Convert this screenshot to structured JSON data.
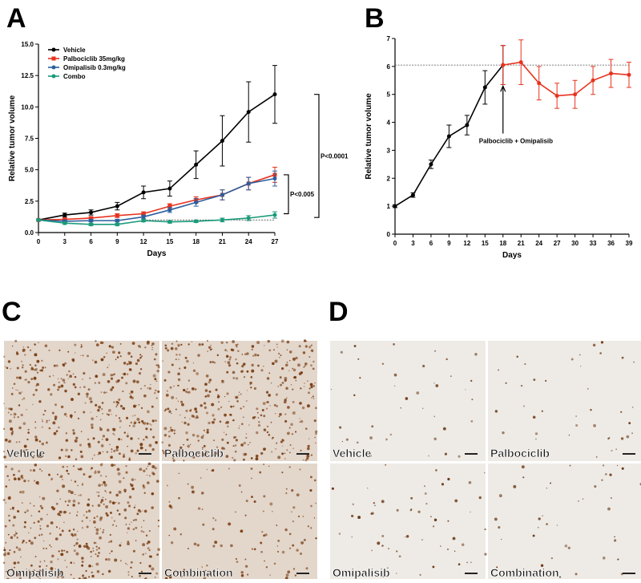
{
  "chart_data": [
    {
      "type": "line",
      "panel": "A",
      "xlabel": "Days",
      "ylabel": "Relative tumor volume",
      "xlim": [
        0,
        27
      ],
      "xticks": [
        0,
        3,
        6,
        9,
        12,
        15,
        18,
        21,
        24,
        27
      ],
      "ylim": [
        0,
        15
      ],
      "yticks": [
        {
          "value": 0,
          "label": "0.0"
        },
        2.5,
        {
          "value": 5,
          "label": "5.0"
        },
        7.5,
        {
          "value": 10,
          "label": "10.0"
        },
        12.5,
        {
          "value": 15,
          "label": "15.0"
        }
      ],
      "hline": 1,
      "legend": "upper left",
      "x": [
        0,
        3,
        6,
        9,
        12,
        15,
        18,
        21,
        24,
        27
      ],
      "series": [
        {
          "name": "Vehicle",
          "color": "#000000",
          "marker": "circle",
          "values": [
            1,
            1.4,
            1.6,
            2.1,
            3.2,
            3.5,
            5.4,
            7.3,
            9.6,
            11.0
          ],
          "errors": [
            0.05,
            0.15,
            0.2,
            0.3,
            0.5,
            0.6,
            1.1,
            2.0,
            2.4,
            2.3
          ]
        },
        {
          "name": "Palbociclib 35mg/kg",
          "color": "#e8321e",
          "marker": "square",
          "values": [
            1,
            1.05,
            1.15,
            1.35,
            1.5,
            2.1,
            2.6,
            3.0,
            3.9,
            4.6
          ],
          "errors": [
            0.05,
            0.1,
            0.1,
            0.15,
            0.15,
            0.2,
            0.25,
            0.4,
            0.5,
            0.6
          ]
        },
        {
          "name": "Omipalisib 0.3mg/kg",
          "color": "#2b5f9e",
          "marker": "circle",
          "values": [
            1,
            0.9,
            0.95,
            0.95,
            1.25,
            1.8,
            2.4,
            3.0,
            3.9,
            4.3
          ],
          "errors": [
            0.05,
            0.1,
            0.1,
            0.1,
            0.15,
            0.2,
            0.3,
            0.4,
            0.5,
            0.6
          ]
        },
        {
          "name": "Combo",
          "color": "#1a9a7a",
          "marker": "circle",
          "values": [
            1,
            0.75,
            0.65,
            0.65,
            0.95,
            0.85,
            0.9,
            1.0,
            1.15,
            1.4
          ],
          "errors": [
            0.05,
            0.1,
            0.1,
            0.1,
            0.1,
            0.1,
            0.1,
            0.15,
            0.2,
            0.25
          ]
        }
      ],
      "annotations": [
        "P<0.0001",
        "P<0.005"
      ]
    },
    {
      "type": "line",
      "panel": "B",
      "xlabel": "Days",
      "ylabel": "Relative tumor volume",
      "xlim": [
        0,
        39
      ],
      "xticks": [
        0,
        3,
        6,
        9,
        12,
        15,
        18,
        21,
        24,
        27,
        30,
        33,
        36,
        39
      ],
      "ylim": [
        0,
        7
      ],
      "yticks": [
        0,
        1,
        2,
        3,
        4,
        5,
        6,
        7
      ],
      "hline": 6.05,
      "series": [
        {
          "color": "#000000",
          "marker": "circle",
          "x": [
            0,
            3,
            6,
            9,
            12,
            15,
            18
          ],
          "values": [
            1,
            1.4,
            2.5,
            3.5,
            3.9,
            5.25,
            6.05
          ],
          "errors": [
            0.05,
            0.08,
            0.15,
            0.4,
            0.35,
            0.6,
            0.7
          ]
        },
        {
          "color": "#e8321e",
          "marker": "circle",
          "x": [
            18,
            21,
            24,
            27,
            30,
            33,
            36,
            39
          ],
          "values": [
            6.05,
            6.15,
            5.4,
            4.95,
            5.0,
            5.5,
            5.75,
            5.7
          ],
          "errors": [
            0.7,
            0.8,
            0.6,
            0.45,
            0.5,
            0.5,
            0.5,
            0.45
          ]
        }
      ],
      "annotations": [
        "Palbociclib + Omipalisib"
      ]
    }
  ],
  "panels": [
    {
      "label": "C",
      "images": [
        "Vehicle",
        "Palbociclib",
        "Omipalisib",
        "Combination"
      ]
    },
    {
      "label": "D",
      "images": [
        "Vehicle",
        "Palbociclib",
        "Omipalisib",
        "Combination"
      ]
    }
  ]
}
